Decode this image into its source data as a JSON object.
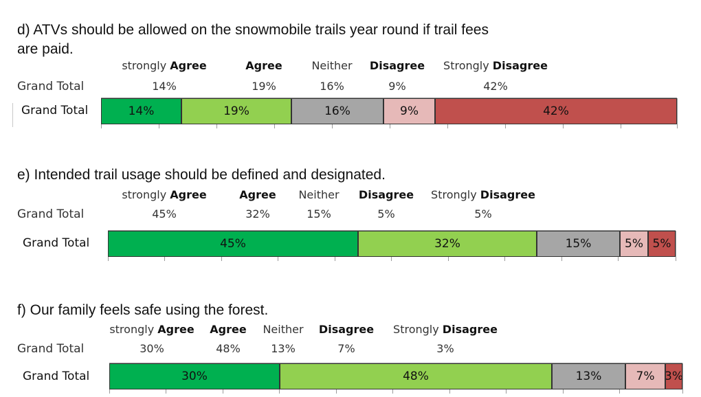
{
  "colors": {
    "strongly_agree": "#00b050",
    "agree": "#92d050",
    "neither": "#a6a6a6",
    "disagree": "#e6b9b8",
    "strongly_disagree": "#c0504d"
  },
  "chart_data": [
    {
      "type": "bar",
      "orientation": "horizontal-stacked-100",
      "title": "d) ATVs should be allowed on the snowmobile trails year round if trail fees are paid.",
      "title_lines": [
        "d) ATVs should be allowed on the snowmobile trails year round if trail fees",
        "are paid."
      ],
      "categories": [
        "Grand Total"
      ],
      "table_row_label": "Grand Total",
      "series": [
        {
          "name": "strongly Agree",
          "values": [
            14
          ],
          "label": "14%"
        },
        {
          "name": "Agree",
          "values": [
            19
          ],
          "label": "19%"
        },
        {
          "name": "Neither",
          "values": [
            16
          ],
          "label": "16%"
        },
        {
          "name": "Disagree",
          "values": [
            9
          ],
          "label": "9%"
        },
        {
          "name": "Strongly Disagree",
          "values": [
            42
          ],
          "label": "42%"
        }
      ]
    },
    {
      "type": "bar",
      "orientation": "horizontal-stacked-100",
      "title": "e) Intended trail usage should be defined and designated.",
      "title_lines": [
        "e) Intended trail usage should be defined and designated."
      ],
      "categories": [
        "Grand Total"
      ],
      "table_row_label": "Grand Total",
      "series": [
        {
          "name": "strongly Agree",
          "values": [
            45
          ],
          "label": "45%"
        },
        {
          "name": "Agree",
          "values": [
            32
          ],
          "label": "32%"
        },
        {
          "name": "Neither",
          "values": [
            15
          ],
          "label": "15%"
        },
        {
          "name": "Disagree",
          "values": [
            5
          ],
          "label": "5%"
        },
        {
          "name": "Strongly Disagree",
          "values": [
            5
          ],
          "label": "5%"
        }
      ]
    },
    {
      "type": "bar",
      "orientation": "horizontal-stacked-100",
      "title": "f) Our family feels safe using the forest.",
      "title_lines": [
        "f) Our family feels safe using the forest."
      ],
      "categories": [
        "Grand Total"
      ],
      "table_row_label": "Grand Total",
      "series": [
        {
          "name": "strongly Agree",
          "values": [
            30
          ],
          "label": "30%"
        },
        {
          "name": "Agree",
          "values": [
            48
          ],
          "label": "48%"
        },
        {
          "name": "Neither",
          "values": [
            13
          ],
          "label": "13%"
        },
        {
          "name": "Disagree",
          "values": [
            7
          ],
          "label": "7%"
        },
        {
          "name": "Strongly Disagree",
          "values": [
            3
          ],
          "label": "3%"
        }
      ]
    }
  ]
}
